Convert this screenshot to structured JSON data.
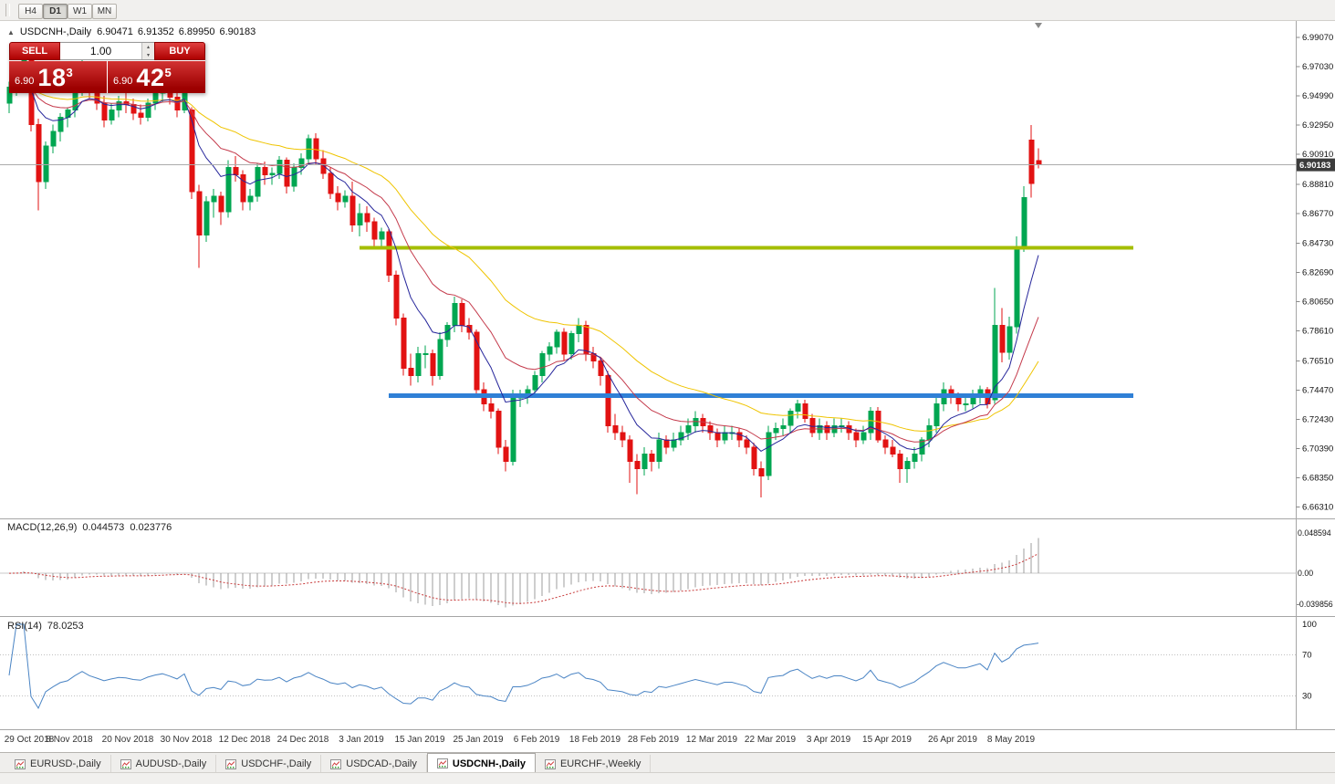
{
  "toolbar": {
    "timeframes": [
      {
        "label": "H4",
        "active": false
      },
      {
        "label": "D1",
        "active": true
      },
      {
        "label": "W1",
        "active": false
      },
      {
        "label": "MN",
        "active": false
      }
    ]
  },
  "icons": {
    "collapse": "▲",
    "spinner_up": "▴",
    "spinner_down": "▾",
    "scroll_marker": "▼"
  },
  "chart_header": {
    "symbol": "USDCNH-,Daily",
    "open": "6.90471",
    "high": "6.91352",
    "low": "6.89950",
    "close": "6.90183"
  },
  "trade_panel": {
    "sell_label": "SELL",
    "buy_label": "BUY",
    "volume": "1.00",
    "sell_price_big": "6.90",
    "sell_price_pips": "18",
    "sell_price_sup": "3",
    "buy_price_big": "6.90",
    "buy_price_pips": "42",
    "buy_price_sup": "5"
  },
  "macd_panel": {
    "name": "MACD(12,26,9)",
    "value_main": "0.044573",
    "value_signal": "0.023776",
    "scale_top_label": "0.048594",
    "scale_zero_label": "0.00",
    "scale_bottom_label": "-0.039856"
  },
  "rsi_panel": {
    "name": "RSI(14)",
    "value": "78.0253"
  },
  "tabs": [
    {
      "label": "EURUSD-,Daily",
      "active": false
    },
    {
      "label": "AUDUSD-,Daily",
      "active": false
    },
    {
      "label": "USDCHF-,Daily",
      "active": false
    },
    {
      "label": "USDCAD-,Daily",
      "active": false
    },
    {
      "label": "USDCNH-,Daily",
      "active": true
    },
    {
      "label": "EURCHF-,Weekly",
      "active": false
    }
  ],
  "colors": {
    "candle_up": "#00A651",
    "candle_down": "#E21212",
    "macd_histogram": "#9C9C9C",
    "macd_signal": "#C83A3A",
    "rsi_line": "#4A84C4",
    "price_line": "#ABABAB",
    "price_badge_bg": "#3C3C3C",
    "price_badge_text": "#FFFFFF",
    "separator": "#A6A6A6",
    "axis_text": "#333333"
  },
  "chart_data": {
    "type": "candlestick",
    "symbol": "USDCNH-",
    "timeframe": "Daily",
    "title": "USDCNH-,Daily 6.90471 6.91352 6.89950 6.90183",
    "y_range": {
      "min": 6.6565,
      "max": 6.999
    },
    "price_ticks": [
      "6.99070",
      "6.97030",
      "6.94990",
      "6.92950",
      "6.90910",
      "6.88810",
      "6.86770",
      "6.84730",
      "6.82690",
      "6.80650",
      "6.78610",
      "6.76510",
      "6.74470",
      "6.72430",
      "6.70390",
      "6.68350",
      "6.66310"
    ],
    "current_price": 6.90183,
    "current_ohlc": {
      "open": 6.90471,
      "high": 6.91352,
      "low": 6.8995,
      "close": 6.90183
    },
    "candles": [
      [
        6.945,
        6.96,
        6.938,
        6.956
      ],
      [
        6.956,
        6.97,
        6.95,
        6.966
      ],
      [
        6.966,
        6.978,
        6.96,
        6.9745
      ],
      [
        6.9745,
        6.977,
        6.925,
        6.93
      ],
      [
        6.93,
        6.934,
        6.87,
        6.89
      ],
      [
        6.89,
        6.918,
        6.885,
        6.915
      ],
      [
        6.915,
        6.93,
        6.91,
        6.925
      ],
      [
        6.925,
        6.938,
        6.918,
        6.935
      ],
      [
        6.935,
        6.942,
        6.928,
        6.94
      ],
      [
        6.94,
        6.958,
        6.935,
        6.955
      ],
      [
        6.955,
        6.976,
        6.95,
        6.97
      ],
      [
        6.97,
        6.973,
        6.948,
        6.955
      ],
      [
        6.955,
        6.96,
        6.94,
        6.945
      ],
      [
        6.945,
        6.95,
        6.928,
        6.933
      ],
      [
        6.933,
        6.945,
        6.93,
        6.94
      ],
      [
        6.94,
        6.95,
        6.935,
        6.946
      ],
      [
        6.946,
        6.952,
        6.938,
        6.944
      ],
      [
        6.944,
        6.948,
        6.933,
        6.938
      ],
      [
        6.938,
        6.944,
        6.93,
        6.935
      ],
      [
        6.935,
        6.948,
        6.932,
        6.945
      ],
      [
        6.945,
        6.956,
        6.94,
        6.952
      ],
      [
        6.952,
        6.96,
        6.946,
        6.956
      ],
      [
        6.956,
        6.959,
        6.944,
        6.949
      ],
      [
        6.949,
        6.953,
        6.935,
        6.94
      ],
      [
        6.94,
        6.958,
        6.938,
        6.955
      ],
      [
        6.94,
        6.942,
        6.878,
        6.883
      ],
      [
        6.883,
        6.888,
        6.83,
        6.853
      ],
      [
        6.853,
        6.88,
        6.848,
        6.876
      ],
      [
        6.876,
        6.885,
        6.865,
        6.88
      ],
      [
        6.88,
        6.883,
        6.86,
        6.869
      ],
      [
        6.869,
        6.905,
        6.865,
        6.9
      ],
      [
        6.9,
        6.908,
        6.89,
        6.895
      ],
      [
        6.895,
        6.898,
        6.87,
        6.876
      ],
      [
        6.876,
        6.885,
        6.87,
        6.88
      ],
      [
        6.88,
        6.903,
        6.876,
        6.9
      ],
      [
        6.9,
        6.904,
        6.888,
        6.895
      ],
      [
        6.895,
        6.9,
        6.888,
        6.896
      ],
      [
        6.896,
        6.908,
        6.892,
        6.905
      ],
      [
        6.905,
        6.907,
        6.882,
        6.887
      ],
      [
        6.887,
        6.903,
        6.883,
        6.9
      ],
      [
        6.9,
        6.91,
        6.895,
        6.906
      ],
      [
        6.906,
        6.923,
        6.902,
        6.92
      ],
      [
        6.92,
        6.924,
        6.902,
        6.906
      ],
      [
        6.906,
        6.912,
        6.892,
        6.896
      ],
      [
        6.896,
        6.9,
        6.878,
        6.882
      ],
      [
        6.882,
        6.887,
        6.87,
        6.876
      ],
      [
        6.876,
        6.884,
        6.872,
        6.88
      ],
      [
        6.88,
        6.89,
        6.855,
        6.86
      ],
      [
        6.86,
        6.875,
        6.852,
        6.868
      ],
      [
        6.868,
        6.873,
        6.855,
        6.862
      ],
      [
        6.862,
        6.865,
        6.845,
        6.85
      ],
      [
        6.85,
        6.858,
        6.844,
        6.855
      ],
      [
        6.855,
        6.857,
        6.82,
        6.825
      ],
      [
        6.825,
        6.828,
        6.79,
        6.795
      ],
      [
        6.795,
        6.798,
        6.755,
        6.76
      ],
      [
        6.76,
        6.77,
        6.748,
        6.755
      ],
      [
        6.755,
        6.775,
        6.75,
        6.77
      ],
      [
        6.77,
        6.776,
        6.76,
        6.77
      ],
      [
        6.77,
        6.773,
        6.748,
        6.755
      ],
      [
        6.755,
        6.785,
        6.752,
        6.78
      ],
      [
        6.78,
        6.792,
        6.775,
        6.79
      ],
      [
        6.79,
        6.81,
        6.785,
        6.805
      ],
      [
        6.805,
        6.808,
        6.785,
        6.79
      ],
      [
        6.79,
        6.795,
        6.78,
        6.785
      ],
      [
        6.785,
        6.787,
        6.74,
        6.745
      ],
      [
        6.745,
        6.75,
        6.73,
        6.735
      ],
      [
        6.735,
        6.742,
        6.725,
        6.73
      ],
      [
        6.73,
        6.732,
        6.7,
        6.705
      ],
      [
        6.705,
        6.71,
        6.688,
        6.695
      ],
      [
        6.695,
        6.745,
        6.692,
        6.74
      ],
      [
        6.74,
        6.745,
        6.733,
        6.74
      ],
      [
        6.74,
        6.748,
        6.735,
        6.745
      ],
      [
        6.745,
        6.758,
        6.74,
        6.755
      ],
      [
        6.755,
        6.772,
        6.75,
        6.77
      ],
      [
        6.77,
        6.778,
        6.765,
        6.775
      ],
      [
        6.775,
        6.787,
        6.77,
        6.785
      ],
      [
        6.785,
        6.788,
        6.765,
        6.77
      ],
      [
        6.77,
        6.786,
        6.766,
        6.784
      ],
      [
        6.784,
        6.795,
        6.778,
        6.79
      ],
      [
        6.79,
        6.793,
        6.765,
        6.77
      ],
      [
        6.77,
        6.775,
        6.76,
        6.765
      ],
      [
        6.765,
        6.768,
        6.748,
        6.755
      ],
      [
        6.755,
        6.758,
        6.715,
        6.72
      ],
      [
        6.72,
        6.728,
        6.71,
        6.715
      ],
      [
        6.715,
        6.72,
        6.705,
        6.71
      ],
      [
        6.71,
        6.713,
        6.68,
        6.695
      ],
      [
        6.695,
        6.7,
        6.672,
        6.69
      ],
      [
        6.69,
        6.705,
        6.685,
        6.7
      ],
      [
        6.7,
        6.703,
        6.688,
        6.695
      ],
      [
        6.695,
        6.715,
        6.69,
        6.71
      ],
      [
        6.71,
        6.713,
        6.7,
        6.705
      ],
      [
        6.705,
        6.715,
        6.702,
        6.71
      ],
      [
        6.71,
        6.72,
        6.706,
        6.715
      ],
      [
        6.715,
        6.725,
        6.71,
        6.72
      ],
      [
        6.72,
        6.73,
        6.715,
        6.725
      ],
      [
        6.725,
        6.728,
        6.715,
        6.72
      ],
      [
        6.72,
        6.723,
        6.71,
        6.715
      ],
      [
        6.715,
        6.718,
        6.705,
        6.71
      ],
      [
        6.71,
        6.72,
        6.707,
        6.715
      ],
      [
        6.715,
        6.72,
        6.71,
        6.715
      ],
      [
        6.715,
        6.718,
        6.705,
        6.71
      ],
      [
        6.71,
        6.713,
        6.7,
        6.705
      ],
      [
        6.705,
        6.708,
        6.685,
        6.69
      ],
      [
        6.69,
        6.695,
        6.67,
        6.685
      ],
      [
        6.685,
        6.72,
        6.682,
        6.715
      ],
      [
        6.715,
        6.722,
        6.71,
        6.718
      ],
      [
        6.718,
        6.725,
        6.713,
        6.72
      ],
      [
        6.72,
        6.732,
        6.715,
        6.73
      ],
      [
        6.73,
        6.738,
        6.725,
        6.735
      ],
      [
        6.735,
        6.738,
        6.722,
        6.725
      ],
      [
        6.725,
        6.728,
        6.712,
        6.715
      ],
      [
        6.715,
        6.725,
        6.71,
        6.72
      ],
      [
        6.72,
        6.723,
        6.71,
        6.715
      ],
      [
        6.715,
        6.725,
        6.712,
        6.72
      ],
      [
        6.72,
        6.725,
        6.715,
        6.72
      ],
      [
        6.72,
        6.723,
        6.71,
        6.715
      ],
      [
        6.715,
        6.718,
        6.705,
        6.71
      ],
      [
        6.71,
        6.72,
        6.707,
        6.715
      ],
      [
        6.715,
        6.733,
        6.71,
        6.73
      ],
      [
        6.73,
        6.733,
        6.708,
        6.71
      ],
      [
        6.71,
        6.713,
        6.7,
        6.705
      ],
      [
        6.705,
        6.71,
        6.698,
        6.7
      ],
      [
        6.7,
        6.703,
        6.68,
        6.69
      ],
      [
        6.69,
        6.698,
        6.68,
        6.695
      ],
      [
        6.695,
        6.705,
        6.69,
        6.7
      ],
      [
        6.7,
        6.712,
        6.695,
        6.71
      ],
      [
        6.71,
        6.725,
        6.705,
        6.72
      ],
      [
        6.72,
        6.74,
        6.715,
        6.735
      ],
      [
        6.735,
        6.75,
        6.73,
        6.745
      ],
      [
        6.745,
        6.748,
        6.735,
        6.74
      ],
      [
        6.74,
        6.743,
        6.73,
        6.735
      ],
      [
        6.735,
        6.74,
        6.73,
        6.735
      ],
      [
        6.735,
        6.745,
        6.732,
        6.74
      ],
      [
        6.74,
        6.748,
        6.735,
        6.745
      ],
      [
        6.745,
        6.747,
        6.732,
        6.735
      ],
      [
        6.738,
        6.816,
        6.735,
        6.79
      ],
      [
        6.79,
        6.802,
        6.764,
        6.771
      ],
      [
        6.771,
        6.796,
        6.766,
        6.789
      ],
      [
        6.789,
        6.852,
        6.784,
        6.845
      ],
      [
        6.845,
        6.887,
        6.841,
        6.879
      ],
      [
        6.919,
        6.9295,
        6.879,
        6.889
      ],
      [
        6.90471,
        6.91352,
        6.8995,
        6.90183
      ]
    ],
    "date_labels": [
      {
        "i": 0,
        "t": "29 Oct 2018"
      },
      {
        "i": 8,
        "t": "8 Nov 2018"
      },
      {
        "i": 16,
        "t": "20 Nov 2018"
      },
      {
        "i": 24,
        "t": "30 Nov 2018"
      },
      {
        "i": 32,
        "t": "12 Dec 2018"
      },
      {
        "i": 40,
        "t": "24 Dec 2018"
      },
      {
        "i": 48,
        "t": "3 Jan 2019"
      },
      {
        "i": 56,
        "t": "15 Jan 2019"
      },
      {
        "i": 64,
        "t": "25 Jan 2019"
      },
      {
        "i": 72,
        "t": "6 Feb 2019"
      },
      {
        "i": 80,
        "t": "18 Feb 2019"
      },
      {
        "i": 88,
        "t": "28 Feb 2019"
      },
      {
        "i": 96,
        "t": "12 Mar 2019"
      },
      {
        "i": 104,
        "t": "22 Mar 2019"
      },
      {
        "i": 112,
        "t": "3 Apr 2019"
      },
      {
        "i": 120,
        "t": "15 Apr 2019"
      },
      {
        "i": 129,
        "t": "26 Apr 2019"
      },
      {
        "i": 137,
        "t": "8 May 2019"
      }
    ],
    "moving_averages": [
      {
        "period": 34,
        "color": "#EFC400",
        "name": "slow-ma"
      },
      {
        "period": 17,
        "color": "#C43A4B",
        "name": "mid-ma"
      },
      {
        "period": 8,
        "color": "#26269B",
        "name": "fast-ma"
      }
    ],
    "hlines": [
      {
        "price": 6.844,
        "color": "#A4BE00",
        "width": 4,
        "from_index": 48,
        "to_index": 154,
        "name": "resistance-level"
      },
      {
        "price": 6.741,
        "color": "#2F80D6",
        "width": 5,
        "from_index": 52,
        "to_index": 154,
        "name": "support-level"
      }
    ],
    "macd": {
      "fast": 12,
      "slow": 26,
      "signal": 9,
      "scale_max": 0.048594,
      "scale_min": -0.039856,
      "current_main": 0.044573,
      "current_signal": 0.023776
    },
    "rsi": {
      "period": 14,
      "current": 78.0253,
      "scale_labels": [
        100,
        70,
        30
      ],
      "levels": [
        70,
        30
      ]
    }
  }
}
